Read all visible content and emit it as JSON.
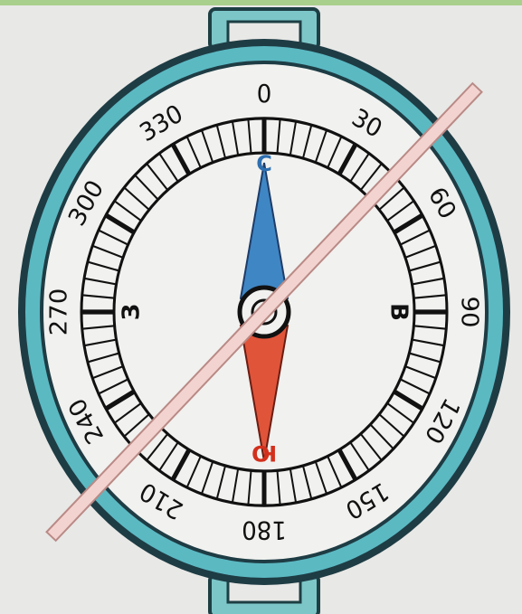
{
  "dial": {
    "degrees": [
      0,
      30,
      60,
      90,
      120,
      150,
      180,
      210,
      240,
      270,
      300,
      330
    ],
    "cardinal": {
      "north": "С",
      "east": "В",
      "south": "Ю",
      "west": "З"
    }
  }
}
